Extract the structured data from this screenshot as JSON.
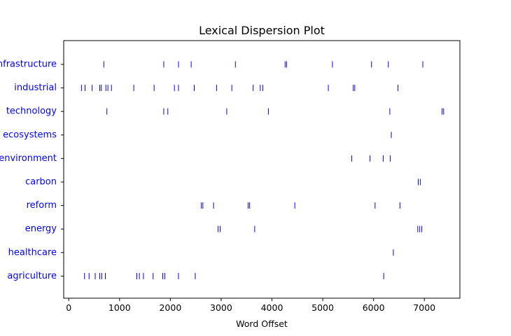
{
  "chart_data": {
    "type": "scatter",
    "title": "Lexical Dispersion Plot",
    "xlabel": "Word Offset",
    "ylabel": "",
    "xlim": [
      -100,
      7700
    ],
    "x_ticks": [
      0,
      1000,
      2000,
      3000,
      4000,
      5000,
      6000,
      7000
    ],
    "x_tick_labels": [
      "0",
      "1000",
      "2000",
      "3000",
      "4000",
      "5000",
      "6000",
      "7000"
    ],
    "grid": false,
    "colors": {
      "marks": "#0000ff",
      "labels": "#0000ff",
      "axes": "#000000"
    },
    "words": [
      {
        "word": "infrastructure",
        "offsets": [
          690,
          1870,
          2160,
          2410,
          3280,
          4260,
          4290,
          5190,
          5960,
          6290,
          6970
        ]
      },
      {
        "word": "industrial",
        "offsets": [
          250,
          320,
          460,
          610,
          640,
          730,
          770,
          840,
          1280,
          1680,
          2080,
          2160,
          2470,
          2910,
          3210,
          3630,
          3770,
          3820,
          5110,
          5600,
          5630,
          6480
        ]
      },
      {
        "word": "technology",
        "offsets": [
          750,
          1870,
          1950,
          3110,
          3930,
          6320,
          7350,
          7380
        ]
      },
      {
        "word": "ecosystems",
        "offsets": [
          6350
        ]
      },
      {
        "word": "environment",
        "offsets": [
          5570,
          5930,
          6190,
          6330
        ]
      },
      {
        "word": "carbon",
        "offsets": [
          6880,
          6920
        ]
      },
      {
        "word": "reform",
        "offsets": [
          2610,
          2640,
          2850,
          3530,
          3560,
          4450,
          6030,
          6520
        ]
      },
      {
        "word": "energy",
        "offsets": [
          2940,
          2980,
          3660,
          6870,
          6910,
          6950
        ]
      },
      {
        "word": "healthcare",
        "offsets": [
          6390
        ]
      },
      {
        "word": "agriculture",
        "offsets": [
          310,
          400,
          520,
          610,
          650,
          720,
          1340,
          1390,
          1470,
          1660,
          1850,
          1890,
          2160,
          2490,
          6200
        ]
      }
    ]
  }
}
